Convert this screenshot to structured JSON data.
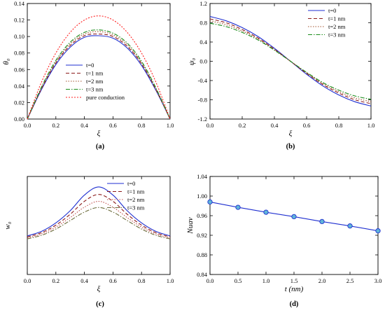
{
  "figure": {
    "chart_data": [
      {
        "type": "line",
        "panel_label": "(a)",
        "xlabel": "ξ",
        "ylabel": "θ₀",
        "xlim": [
          0.0,
          1.0
        ],
        "ylim": [
          0.0,
          0.14
        ],
        "xticks": [
          "0.0",
          "0.2",
          "0.4",
          "0.6",
          "0.8",
          "1.0"
        ],
        "yticks": [
          "0.00",
          "0.02",
          "0.04",
          "0.06",
          "0.08",
          "0.10",
          "0.12",
          "0.14"
        ],
        "xtick_values": [
          0.0,
          0.2,
          0.4,
          0.6,
          0.8,
          1.0
        ],
        "ytick_values": [
          0.0,
          0.02,
          0.04,
          0.06,
          0.08,
          0.1,
          0.12,
          0.14
        ],
        "legend_position": "bottom-center",
        "x": [
          0.0,
          0.1,
          0.2,
          0.3,
          0.4,
          0.5,
          0.6,
          0.7,
          0.8,
          0.9,
          1.0
        ],
        "series": [
          {
            "name": "t=0",
            "color": "#1f2fd0",
            "dash": "",
            "values": [
              0.0,
              0.036,
              0.066,
              0.087,
              0.099,
              0.101,
              0.098,
              0.086,
              0.065,
              0.035,
              0.0
            ]
          },
          {
            "name": "t=1 nm",
            "color": "#8b1a1a",
            "dash": "5,3",
            "values": [
              0.0,
              0.037,
              0.068,
              0.089,
              0.101,
              0.103,
              0.1,
              0.088,
              0.067,
              0.036,
              0.0
            ]
          },
          {
            "name": "t=2 nm",
            "color": "#a0522d",
            "dash": "1.5,2",
            "values": [
              0.0,
              0.038,
              0.069,
              0.091,
              0.103,
              0.106,
              0.102,
              0.09,
              0.068,
              0.037,
              0.0
            ]
          },
          {
            "name": "t=3 nm",
            "color": "#1a8c1a",
            "dash": "6,2,1.5,2",
            "values": [
              0.0,
              0.039,
              0.071,
              0.093,
              0.105,
              0.108,
              0.104,
              0.092,
              0.07,
              0.038,
              0.0
            ]
          },
          {
            "name": "pure conduction",
            "color": "#ff2020",
            "dash": "2,2",
            "values": [
              0.0,
              0.045,
              0.08,
              0.105,
              0.12,
              0.125,
              0.12,
              0.105,
              0.08,
              0.045,
              0.0
            ]
          }
        ]
      },
      {
        "type": "line",
        "panel_label": "(b)",
        "xlabel": "ξ",
        "ylabel": "ψ₀",
        "xlim": [
          0.0,
          1.0
        ],
        "ylim": [
          -1.2,
          1.2
        ],
        "xticks": [
          "0.0",
          "0.2",
          "0.4",
          "0.6",
          "0.8",
          "1.0"
        ],
        "yticks": [
          "-1.2",
          "-0.8",
          "-0.4",
          "0.0",
          "0.4",
          "0.8",
          "1.2"
        ],
        "xtick_values": [
          0.0,
          0.2,
          0.4,
          0.6,
          0.8,
          1.0
        ],
        "ytick_values": [
          -1.2,
          -0.8,
          -0.4,
          0.0,
          0.4,
          0.8,
          1.2
        ],
        "legend_position": "top-right",
        "x": [
          0.0,
          0.1,
          0.2,
          0.3,
          0.4,
          0.5,
          0.6,
          0.7,
          0.8,
          0.9,
          1.0
        ],
        "series": [
          {
            "name": "t=0",
            "color": "#1f2fd0",
            "dash": "",
            "values": [
              0.93,
              0.84,
              0.7,
              0.51,
              0.27,
              0.0,
              -0.27,
              -0.51,
              -0.7,
              -0.84,
              -0.93
            ]
          },
          {
            "name": "t=1 nm",
            "color": "#8b1a1a",
            "dash": "5,3",
            "values": [
              0.88,
              0.8,
              0.66,
              0.48,
              0.25,
              0.0,
              -0.25,
              -0.48,
              -0.66,
              -0.8,
              -0.88
            ]
          },
          {
            "name": "t=2 nm",
            "color": "#a0522d",
            "dash": "1.5,2",
            "values": [
              0.84,
              0.76,
              0.63,
              0.46,
              0.24,
              0.0,
              -0.24,
              -0.46,
              -0.63,
              -0.76,
              -0.84
            ]
          },
          {
            "name": "t=3 nm",
            "color": "#1a8c1a",
            "dash": "6,2,1.5,2",
            "values": [
              0.79,
              0.72,
              0.6,
              0.44,
              0.23,
              0.0,
              -0.23,
              -0.44,
              -0.6,
              -0.72,
              -0.79
            ]
          }
        ]
      },
      {
        "type": "line",
        "panel_label": "(c)",
        "xlabel": "ξ",
        "ylabel": "w₀",
        "xlim": [
          0.0,
          1.0
        ],
        "ylim": [
          0.0,
          3.0
        ],
        "xticks": [
          "0.0",
          "0.2",
          "0.4",
          "0.6",
          "0.8",
          "1.0"
        ],
        "yticks": [],
        "xtick_values": [
          0.0,
          0.2,
          0.4,
          0.6,
          0.8,
          1.0
        ],
        "ytick_values": [],
        "legend_position": "top-right",
        "x": [
          0.0,
          0.1,
          0.2,
          0.3,
          0.4,
          0.5,
          0.6,
          0.7,
          0.8,
          0.9,
          1.0
        ],
        "series": [
          {
            "name": "t=0",
            "color": "#1f2fd0",
            "dash": "",
            "values": [
              1.18,
              1.32,
              1.58,
              1.95,
              2.43,
              2.68,
              2.43,
              1.95,
              1.58,
              1.32,
              1.18
            ]
          },
          {
            "name": "t=1 nm",
            "color": "#8b1a1a",
            "dash": "5,3",
            "values": [
              1.15,
              1.28,
              1.51,
              1.84,
              2.24,
              2.45,
              2.24,
              1.84,
              1.51,
              1.28,
              1.15
            ]
          },
          {
            "name": "t=2 nm",
            "color": "#c0504d",
            "dash": "1.5,2",
            "values": [
              1.12,
              1.24,
              1.45,
              1.74,
              2.06,
              2.24,
              2.06,
              1.74,
              1.45,
              1.24,
              1.12
            ]
          },
          {
            "name": "t=3 nm",
            "color": "#6b6b3a",
            "dash": "6,2,1.5,2",
            "values": [
              1.09,
              1.2,
              1.39,
              1.65,
              1.91,
              2.05,
              1.91,
              1.65,
              1.39,
              1.2,
              1.09
            ]
          }
        ]
      },
      {
        "type": "line",
        "panel_label": "(d)",
        "xlabel": "t (nm)",
        "ylabel": "Nuav",
        "xlim": [
          0.0,
          3.0
        ],
        "ylim": [
          0.84,
          1.04
        ],
        "xticks": [
          "0.0",
          "0.5",
          "1.0",
          "1.5",
          "2.0",
          "2.5",
          "3.0"
        ],
        "yticks": [
          "0.84",
          "0.88",
          "0.92",
          "0.96",
          "1.00",
          "1.04"
        ],
        "xtick_values": [
          0.0,
          0.5,
          1.0,
          1.5,
          2.0,
          2.5,
          3.0
        ],
        "ytick_values": [
          0.84,
          0.88,
          0.92,
          0.96,
          1.0,
          1.04
        ],
        "markers": true,
        "x": [
          0.0,
          0.5,
          1.0,
          1.5,
          2.0,
          2.5,
          3.0
        ],
        "series": [
          {
            "name": "",
            "color": "#1f2fd0",
            "marker_fill": "#5fb4d8",
            "dash": "",
            "values": [
              0.988,
              0.977,
              0.967,
              0.958,
              0.948,
              0.939,
              0.929
            ]
          }
        ]
      }
    ]
  }
}
